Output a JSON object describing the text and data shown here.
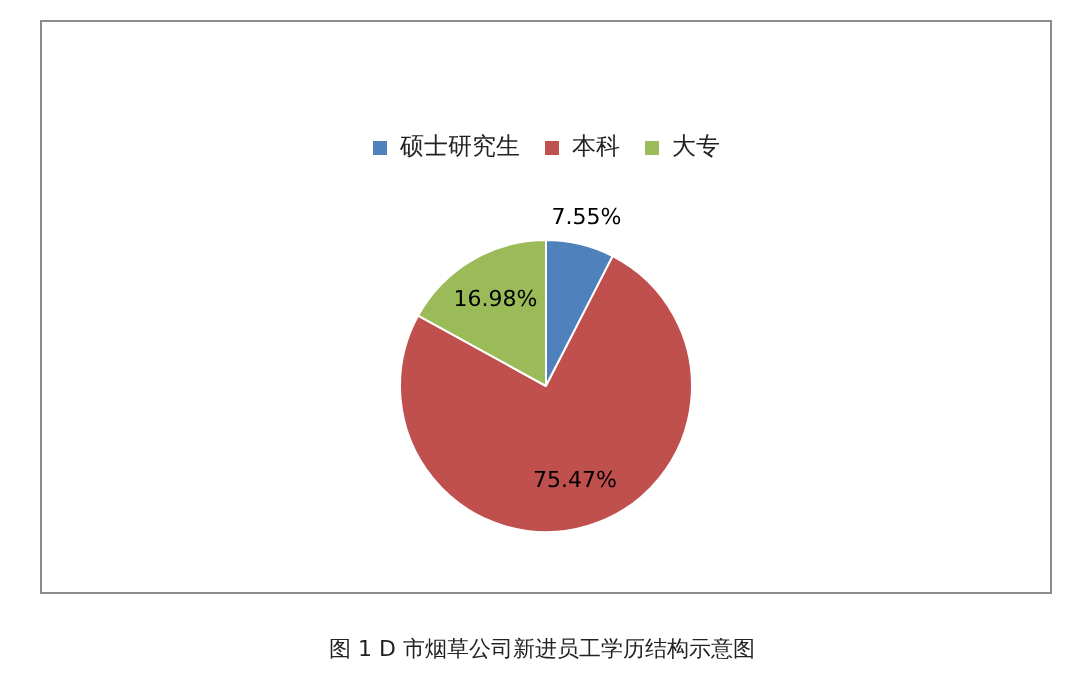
{
  "chart_data": {
    "type": "pie",
    "categories": [
      "硕士研究生",
      "本科",
      "大专"
    ],
    "values": [
      7.55,
      75.47,
      16.98
    ],
    "colors": [
      "#4f81bd",
      "#c0504d",
      "#9bbb59"
    ],
    "value_labels": [
      "7.55%",
      "75.47%",
      "16.98%"
    ],
    "legend": "top",
    "annotations": [
      "图 1 D 市烟草公司新进员工学历结构示意图"
    ]
  }
}
